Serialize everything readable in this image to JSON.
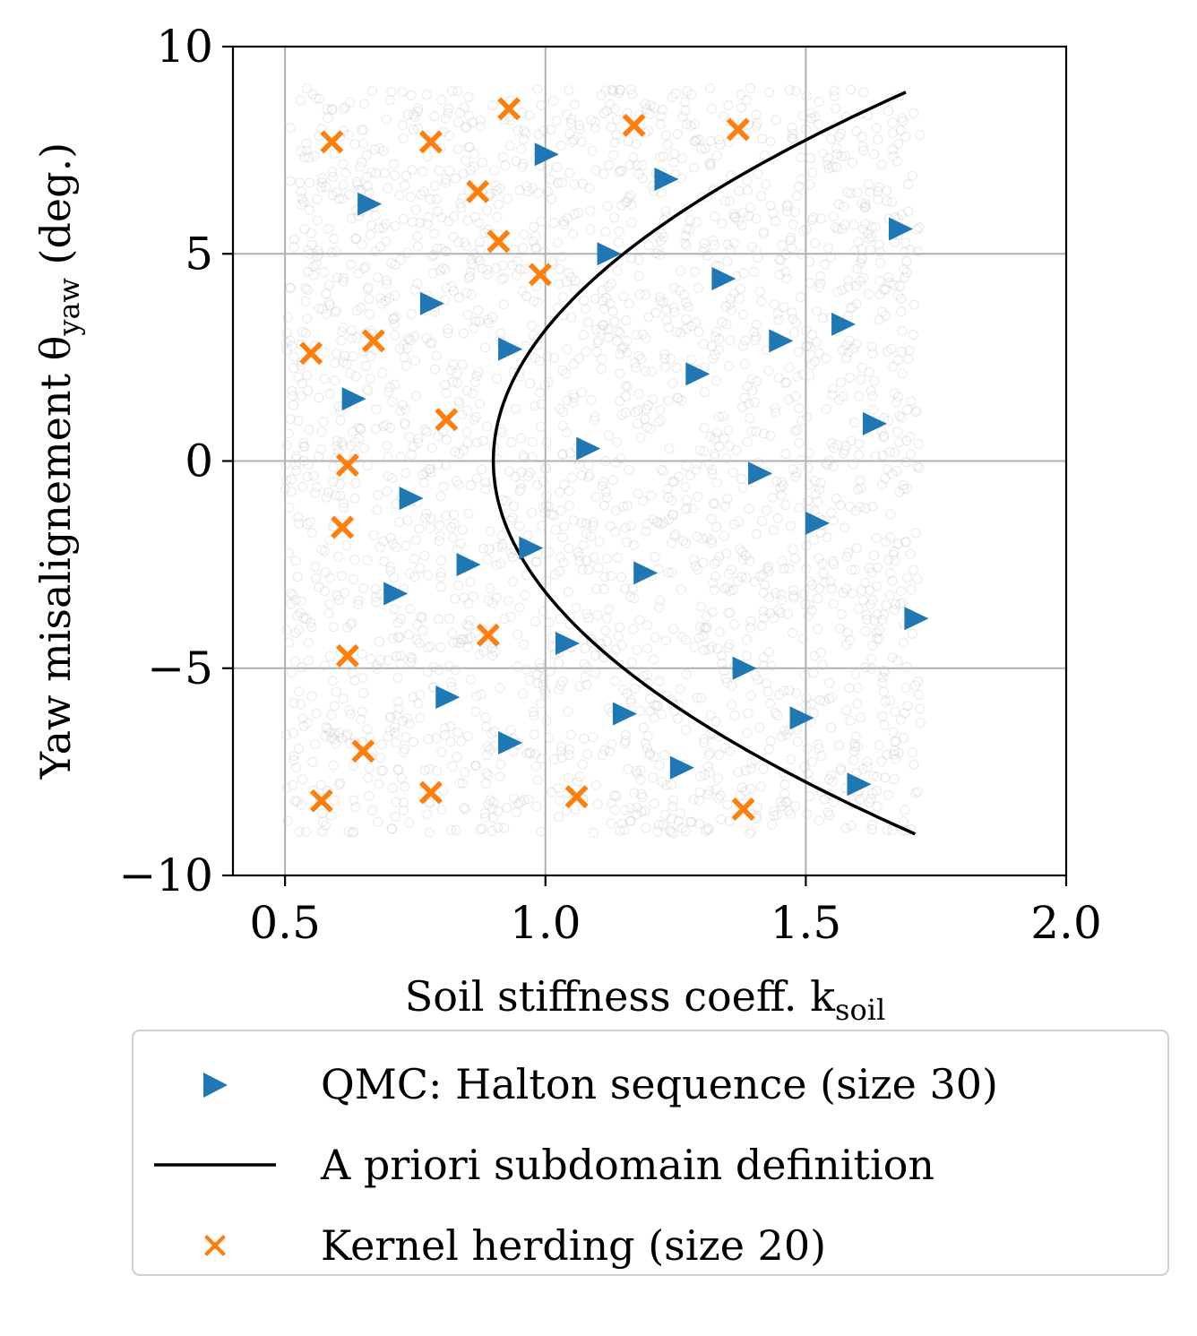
{
  "chart_data": {
    "type": "scatter",
    "title": "",
    "xlabel": "Soil stiffness coeff. k",
    "xlabel_sub": "soil",
    "ylabel": "Yaw misalignement θ",
    "ylabel_sub": "yaw",
    "ylabel_suffix": " (deg.)",
    "xlim": [
      0.4,
      2.0
    ],
    "ylim": [
      -10,
      10
    ],
    "xticks": [
      0.5,
      1.0,
      1.5,
      2.0
    ],
    "xtick_labels": [
      "0.5",
      "1.0",
      "1.5",
      "2.0"
    ],
    "yticks": [
      -10,
      -5,
      0,
      5,
      10
    ],
    "ytick_labels": [
      "−10",
      "−5",
      "0",
      "5",
      "10"
    ],
    "grid": true,
    "legend_position": "bottom-outside",
    "background_cloud": {
      "description": "uniform Monte Carlo reference sample",
      "x_range": [
        0.5,
        1.72
      ],
      "y_range": [
        -9,
        9
      ],
      "color": "#c8c8c8"
    },
    "series": [
      {
        "name": "QMC: Halton sequence (size 30)",
        "marker": "triangle-right",
        "color": "#1f77b4",
        "points": [
          [
            1.0,
            7.4
          ],
          [
            1.23,
            6.8
          ],
          [
            0.66,
            6.2
          ],
          [
            1.68,
            5.6
          ],
          [
            1.12,
            5.0
          ],
          [
            1.34,
            4.4
          ],
          [
            0.78,
            3.8
          ],
          [
            1.57,
            3.3
          ],
          [
            1.45,
            2.9
          ],
          [
            0.93,
            2.7
          ],
          [
            1.29,
            2.1
          ],
          [
            0.63,
            1.5
          ],
          [
            1.63,
            0.9
          ],
          [
            1.08,
            0.3
          ],
          [
            1.41,
            -0.3
          ],
          [
            0.74,
            -0.9
          ],
          [
            1.52,
            -1.5
          ],
          [
            0.97,
            -2.1
          ],
          [
            0.85,
            -2.5
          ],
          [
            1.19,
            -2.7
          ],
          [
            0.71,
            -3.2
          ],
          [
            1.71,
            -3.8
          ],
          [
            1.04,
            -4.4
          ],
          [
            1.38,
            -5.0
          ],
          [
            0.81,
            -5.7
          ],
          [
            1.15,
            -6.1
          ],
          [
            1.49,
            -6.2
          ],
          [
            0.93,
            -6.8
          ],
          [
            1.26,
            -7.4
          ],
          [
            1.6,
            -7.8
          ]
        ]
      },
      {
        "name": "A priori subdomain definition",
        "marker": "line",
        "color": "#000000",
        "vertex_x": 0.9,
        "curvature": 0.01,
        "y_span": [
          -9,
          8.9
        ]
      },
      {
        "name": "Kernel herding (size 20)",
        "marker": "x-filled",
        "color": "#ff7f0e",
        "points": [
          [
            0.93,
            8.5
          ],
          [
            1.17,
            8.1
          ],
          [
            1.37,
            8.0
          ],
          [
            0.59,
            7.7
          ],
          [
            0.78,
            7.7
          ],
          [
            0.87,
            6.5
          ],
          [
            0.91,
            5.3
          ],
          [
            0.99,
            4.5
          ],
          [
            0.67,
            2.9
          ],
          [
            0.55,
            2.6
          ],
          [
            0.81,
            1.0
          ],
          [
            0.62,
            -0.1
          ],
          [
            0.61,
            -1.6
          ],
          [
            0.89,
            -4.2
          ],
          [
            0.62,
            -4.7
          ],
          [
            0.65,
            -7.0
          ],
          [
            0.57,
            -8.2
          ],
          [
            0.78,
            -8.0
          ],
          [
            1.06,
            -8.1
          ],
          [
            1.38,
            -8.4
          ]
        ]
      }
    ]
  }
}
